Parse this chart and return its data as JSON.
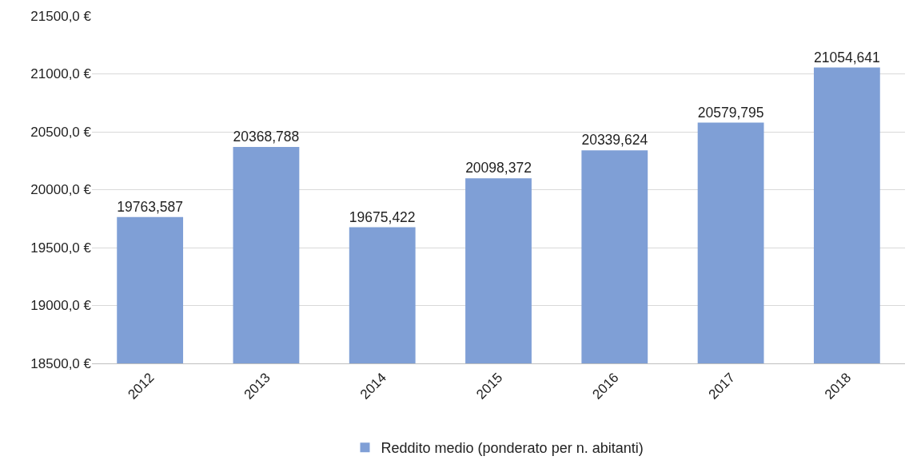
{
  "chart_data": {
    "type": "bar",
    "categories": [
      "2012",
      "2013",
      "2014",
      "2015",
      "2016",
      "2017",
      "2018"
    ],
    "series": [
      {
        "name": "Reddito medio (ponderato per n. abitanti)",
        "color": "#7f9fd6",
        "values": [
          19763.587,
          20368.788,
          19675.422,
          20098.372,
          20339.624,
          20579.795,
          21054.641
        ],
        "value_labels": [
          "19763,587",
          "20368,788",
          "19675,422",
          "20098,372",
          "20339,624",
          "20579,795",
          "21054,641"
        ]
      }
    ],
    "ylim": [
      18500,
      21500
    ],
    "yticks": [
      {
        "value": 18500,
        "label": "18500,0 €"
      },
      {
        "value": 19000,
        "label": "19000,0 €"
      },
      {
        "value": 19500,
        "label": "19500,0 €"
      },
      {
        "value": 20000,
        "label": "20000,0 €"
      },
      {
        "value": 20500,
        "label": "20500,0 €"
      },
      {
        "value": 21000,
        "label": "21000,0 €"
      },
      {
        "value": 21500,
        "label": "21500,0 €"
      }
    ],
    "grid": "y",
    "legend": "bottom"
  }
}
